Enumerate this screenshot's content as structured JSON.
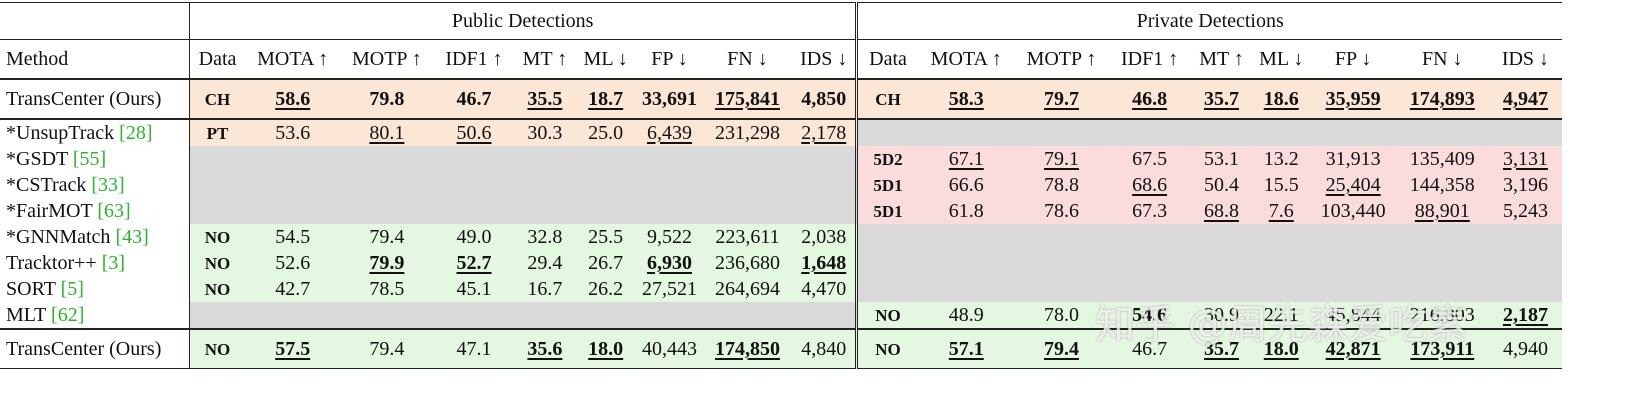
{
  "header": {
    "method": "Method",
    "groups": [
      "Public Detections",
      "Private Detections"
    ],
    "columns": [
      [
        "Data",
        "MOTA ↑",
        "MOTP ↑",
        "IDF1 ↑",
        "MT ↑",
        "ML ↓",
        "FP ↓",
        "FN ↓",
        "IDS ↓"
      ],
      [
        "Data",
        "MOTA ↑",
        "MOTP ↑",
        "IDF1 ↑",
        "MT ↑",
        "ML ↓",
        "FP ↓",
        "FN ↓",
        "IDS ↓"
      ]
    ]
  },
  "blocks": [
    [
      {
        "method": "TransCenter (Ours)",
        "bg": [
          "#fce6d6",
          "#fce6d6"
        ],
        "sections": [
          [
            "CH",
            "58.6",
            "79.8",
            "46.7",
            "35.5",
            "18.7",
            "33,691",
            "175,841",
            "4,850"
          ],
          [
            "CH",
            "58.3",
            "79.7",
            "46.8",
            "35.7",
            "18.6",
            "35,959",
            "174,893",
            "4,947"
          ]
        ],
        "bold": [
          [
            1,
            2,
            3,
            4,
            5,
            6,
            7,
            8
          ],
          [
            1,
            2,
            3,
            4,
            5,
            6,
            7,
            8
          ]
        ],
        "underline": [
          [
            1,
            4,
            5,
            7
          ],
          [
            1,
            2,
            3,
            4,
            5,
            6,
            7,
            8
          ]
        ]
      }
    ],
    [
      {
        "method": "*UnsupTrack",
        "ref": "[28]",
        "bg": [
          "#fce6d6",
          "#d9d9d9"
        ],
        "sections": [
          [
            "PT",
            "53.6",
            "80.1",
            "50.6",
            "30.3",
            "25.0",
            "6,439",
            "231,298",
            "2,178"
          ],
          null
        ],
        "bold": [
          [],
          []
        ],
        "underline": [
          [
            2,
            3,
            6,
            8
          ],
          []
        ]
      },
      {
        "method": "*GSDT",
        "ref": "[55]",
        "bg": [
          "#d9d9d9",
          "#fadcdc"
        ],
        "sections": [
          null,
          [
            "5D2",
            "67.1",
            "79.1",
            "67.5",
            "53.1",
            "13.2",
            "31,913",
            "135,409",
            "3,131"
          ]
        ],
        "bold": [
          [],
          []
        ],
        "underline": [
          [],
          [
            1,
            2,
            8
          ]
        ]
      },
      {
        "method": "*CSTrack",
        "ref": "[33]",
        "bg": [
          "#d9d9d9",
          "#fadcdc"
        ],
        "sections": [
          null,
          [
            "5D1",
            "66.6",
            "78.8",
            "68.6",
            "50.4",
            "15.5",
            "25,404",
            "144,358",
            "3,196"
          ]
        ],
        "bold": [
          [],
          []
        ],
        "underline": [
          [],
          [
            3,
            6
          ]
        ]
      },
      {
        "method": "*FairMOT",
        "ref": "[63]",
        "bg": [
          "#d9d9d9",
          "#fadcdc"
        ],
        "sections": [
          null,
          [
            "5D1",
            "61.8",
            "78.6",
            "67.3",
            "68.8",
            "7.6",
            "103,440",
            "88,901",
            "5,243"
          ]
        ],
        "bold": [
          [],
          []
        ],
        "underline": [
          [],
          [
            4,
            5,
            7
          ]
        ]
      },
      {
        "method": "*GNNMatch",
        "ref": "[43]",
        "bg": [
          "#e4f7e0",
          "#d9d9d9"
        ],
        "sections": [
          [
            "NO",
            "54.5",
            "79.4",
            "49.0",
            "32.8",
            "25.5",
            "9,522",
            "223,611",
            "2,038"
          ],
          null
        ],
        "bold": [
          [],
          []
        ],
        "underline": [
          [],
          []
        ]
      },
      {
        "method": "Tracktor++",
        "ref": "[3]",
        "bg": [
          "#e4f7e0",
          "#d9d9d9"
        ],
        "sections": [
          [
            "NO",
            "52.6",
            "79.9",
            "52.7",
            "29.4",
            "26.7",
            "6,930",
            "236,680",
            "1,648"
          ],
          null
        ],
        "bold": [
          [
            2,
            3,
            6,
            8
          ],
          []
        ],
        "underline": [
          [
            2,
            3,
            6,
            8
          ],
          []
        ]
      },
      {
        "method": "SORT",
        "ref": "[5]",
        "bg": [
          "#e4f7e0",
          "#d9d9d9"
        ],
        "sections": [
          [
            "NO",
            "42.7",
            "78.5",
            "45.1",
            "16.7",
            "26.2",
            "27,521",
            "264,694",
            "4,470"
          ],
          null
        ],
        "bold": [
          [],
          []
        ],
        "underline": [
          [],
          []
        ]
      },
      {
        "method": "MLT",
        "ref": "[62]",
        "bg": [
          "#d9d9d9",
          "#e4f7e0"
        ],
        "sections": [
          null,
          [
            "NO",
            "48.9",
            "78.0",
            "54.6",
            "30.9",
            "22.1",
            "45,844",
            "216,803",
            "2,187"
          ]
        ],
        "bold": [
          [],
          [
            3,
            8
          ]
        ],
        "underline": [
          [],
          [
            8
          ]
        ]
      }
    ],
    [
      {
        "method": "TransCenter (Ours)",
        "bg": [
          "#e4f7e0",
          "#e4f7e0"
        ],
        "sections": [
          [
            "NO",
            "57.5",
            "79.4",
            "47.1",
            "35.6",
            "18.0",
            "40,443",
            "174,850",
            "4,840"
          ],
          [
            "NO",
            "57.1",
            "79.4",
            "46.7",
            "35.7",
            "18.0",
            "42,871",
            "173,911",
            "4,940"
          ]
        ],
        "bold": [
          [
            1,
            4,
            5,
            7
          ],
          [
            1,
            2,
            4,
            5,
            6,
            7
          ]
        ],
        "underline": [
          [
            1,
            4,
            5,
            7
          ],
          [
            1,
            2,
            4,
            5,
            6,
            7
          ]
        ]
      }
    ]
  ],
  "watermark": "知乎 @周先森爱吃素"
}
